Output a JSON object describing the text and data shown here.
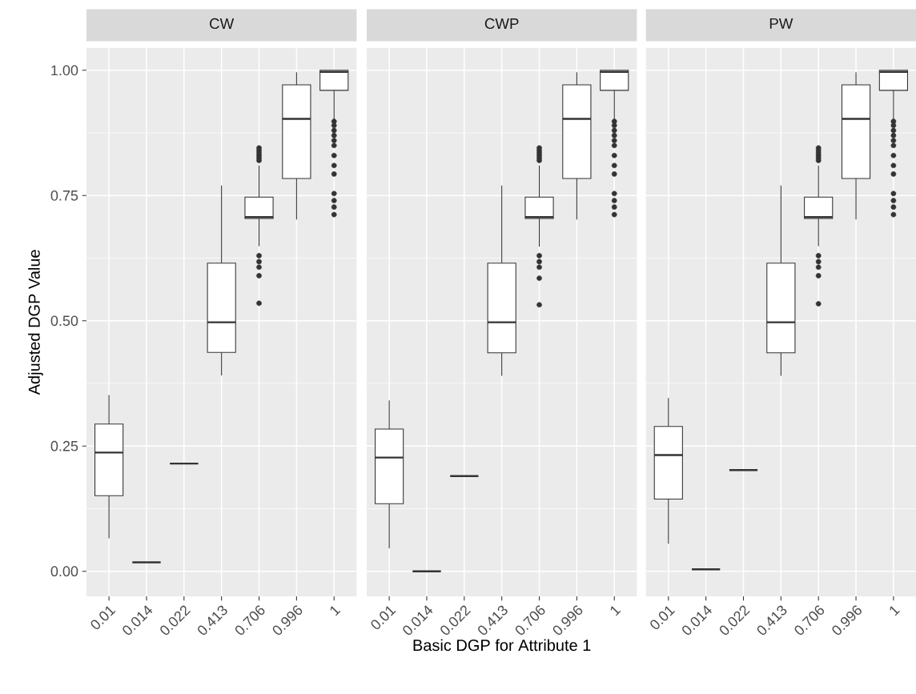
{
  "chart_data": [
    {
      "type": "box",
      "title": "CW",
      "ylabel": "Adjusted DGP Value",
      "categories": [
        "0.01",
        "0.014",
        "0.022",
        "0.413",
        "0.706",
        "0.996",
        "1"
      ],
      "color": "#333333",
      "grid": true,
      "ylim": [
        -0.05,
        1.045
      ],
      "yticks": [
        {
          "value": 0,
          "label": "0.00"
        },
        {
          "value": 0.25,
          "label": "0.25"
        },
        {
          "value": 0.5,
          "label": "0.50"
        },
        {
          "value": 0.75,
          "label": "0.75"
        },
        {
          "value": 1,
          "label": "1.00"
        }
      ],
      "boxes": [
        {
          "low": 0.066,
          "q1": 0.151,
          "median": 0.237,
          "q3": 0.294,
          "high": 0.352
        },
        {
          "low": 0.018,
          "q1": 0.018,
          "median": 0.018,
          "q3": 0.018,
          "high": 0.018
        },
        {
          "low": 0.215,
          "q1": 0.215,
          "median": 0.215,
          "q3": 0.215,
          "high": 0.215
        },
        {
          "low": 0.391,
          "q1": 0.437,
          "median": 0.497,
          "q3": 0.615,
          "high": 0.77
        },
        {
          "low": 0.649,
          "q1": 0.704,
          "median": 0.707,
          "q3": 0.747,
          "high": 0.81,
          "outliers": [
            0.845,
            0.84,
            0.835,
            0.83,
            0.825,
            0.82,
            0.63,
            0.618,
            0.607,
            0.59,
            0.535
          ]
        },
        {
          "low": 0.702,
          "q1": 0.784,
          "median": 0.903,
          "q3": 0.971,
          "high": 0.996
        },
        {
          "low": 0.9,
          "q1": 0.96,
          "median": 0.997,
          "q3": 1.0,
          "high": 1.0,
          "outliers": [
            0.898,
            0.89,
            0.88,
            0.87,
            0.86,
            0.85,
            0.83,
            0.81,
            0.793,
            0.754,
            0.74,
            0.727,
            0.712
          ]
        }
      ]
    },
    {
      "type": "box",
      "title": "CWP",
      "xlabel": "Basic DGP for Attribute 1",
      "categories": [
        "0.01",
        "0.014",
        "0.022",
        "0.413",
        "0.706",
        "0.996",
        "1"
      ],
      "color": "#333333",
      "grid": true,
      "tick_labels": "x",
      "ylim": [
        -0.05,
        1.045
      ],
      "yticks": [
        {
          "value": 0,
          "label": null
        },
        {
          "value": 0.25,
          "label": null
        },
        {
          "value": 0.5,
          "label": null
        },
        {
          "value": 0.75,
          "label": null
        },
        {
          "value": 1,
          "label": null
        }
      ],
      "boxes": [
        {
          "low": 0.046,
          "q1": 0.135,
          "median": 0.227,
          "q3": 0.284,
          "high": 0.341
        },
        {
          "low": 0.0,
          "q1": 0.0,
          "median": 0.0,
          "q3": 0.0,
          "high": 0.0
        },
        {
          "low": 0.19,
          "q1": 0.19,
          "median": 0.19,
          "q3": 0.19,
          "high": 0.19
        },
        {
          "low": 0.39,
          "q1": 0.436,
          "median": 0.497,
          "q3": 0.615,
          "high": 0.77
        },
        {
          "low": 0.648,
          "q1": 0.704,
          "median": 0.707,
          "q3": 0.747,
          "high": 0.81,
          "outliers": [
            0.845,
            0.84,
            0.835,
            0.83,
            0.825,
            0.82,
            0.63,
            0.618,
            0.607,
            0.585,
            0.532
          ]
        },
        {
          "low": 0.702,
          "q1": 0.784,
          "median": 0.903,
          "q3": 0.971,
          "high": 0.996
        },
        {
          "low": 0.9,
          "q1": 0.96,
          "median": 0.997,
          "q3": 1.0,
          "high": 1.0,
          "outliers": [
            0.898,
            0.89,
            0.88,
            0.87,
            0.86,
            0.85,
            0.83,
            0.81,
            0.793,
            0.754,
            0.74,
            0.727,
            0.712
          ]
        }
      ]
    },
    {
      "type": "box",
      "title": "PW",
      "categories": [
        "0.01",
        "0.014",
        "0.022",
        "0.413",
        "0.706",
        "0.996",
        "1"
      ],
      "color": "#333333",
      "grid": true,
      "tick_labels": "x",
      "ylim": [
        -0.05,
        1.045
      ],
      "yticks": [
        {
          "value": 0,
          "label": null
        },
        {
          "value": 0.25,
          "label": null
        },
        {
          "value": 0.5,
          "label": null
        },
        {
          "value": 0.75,
          "label": null
        },
        {
          "value": 1,
          "label": null
        }
      ],
      "boxes": [
        {
          "low": 0.055,
          "q1": 0.144,
          "median": 0.232,
          "q3": 0.289,
          "high": 0.346
        },
        {
          "low": 0.004,
          "q1": 0.004,
          "median": 0.004,
          "q3": 0.004,
          "high": 0.004
        },
        {
          "low": 0.202,
          "q1": 0.202,
          "median": 0.202,
          "q3": 0.202,
          "high": 0.202
        },
        {
          "low": 0.39,
          "q1": 0.436,
          "median": 0.497,
          "q3": 0.615,
          "high": 0.77
        },
        {
          "low": 0.649,
          "q1": 0.704,
          "median": 0.707,
          "q3": 0.747,
          "high": 0.81,
          "outliers": [
            0.845,
            0.84,
            0.835,
            0.83,
            0.825,
            0.82,
            0.63,
            0.618,
            0.607,
            0.59,
            0.534
          ]
        },
        {
          "low": 0.702,
          "q1": 0.784,
          "median": 0.903,
          "q3": 0.971,
          "high": 0.996
        },
        {
          "low": 0.9,
          "q1": 0.96,
          "median": 0.997,
          "q3": 1.0,
          "high": 1.0,
          "outliers": [
            0.898,
            0.89,
            0.88,
            0.87,
            0.86,
            0.85,
            0.83,
            0.81,
            0.793,
            0.754,
            0.74,
            0.727,
            0.712
          ]
        }
      ]
    }
  ]
}
